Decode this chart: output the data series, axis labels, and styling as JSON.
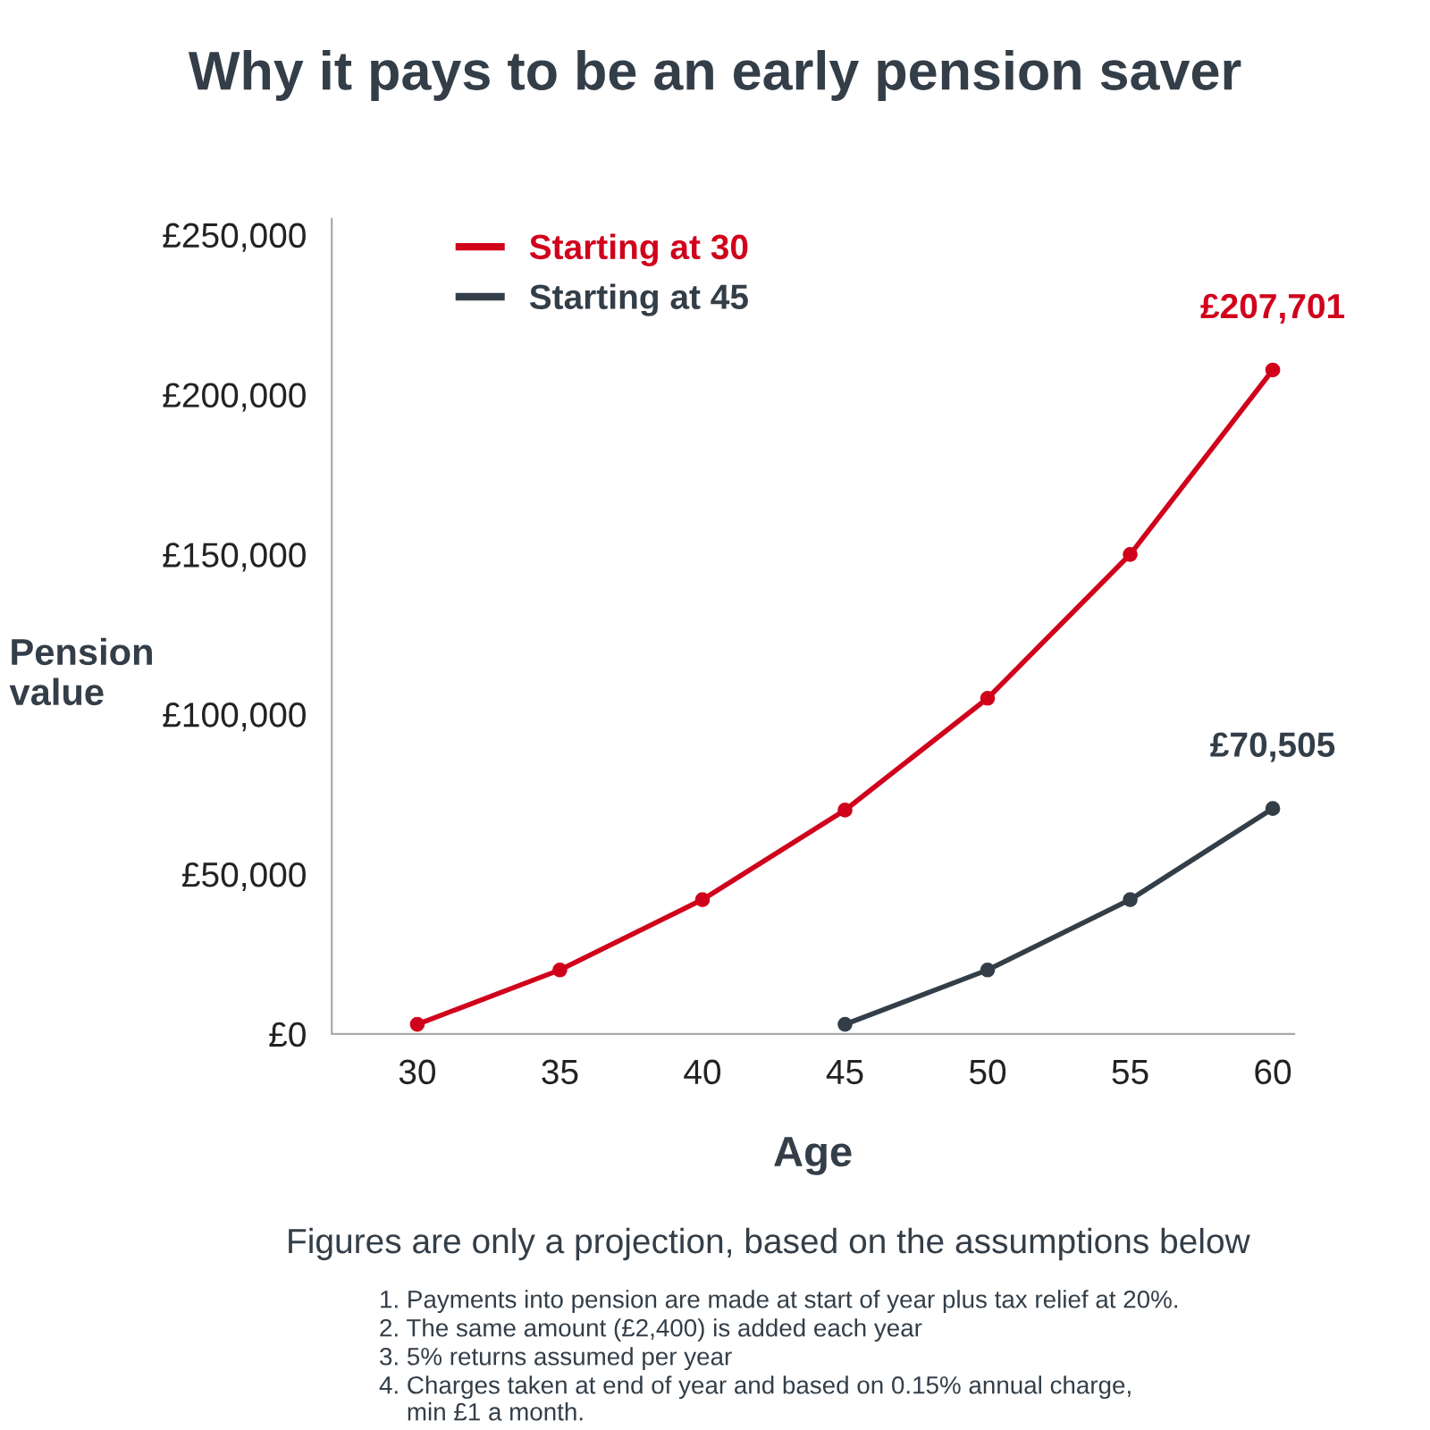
{
  "chart_data": {
    "type": "line",
    "title": "Why it pays to be an early pension saver",
    "xlabel": "Age",
    "ylabel": "Pension\nvalue",
    "x": [
      30,
      35,
      40,
      45,
      50,
      55,
      60
    ],
    "series": [
      {
        "name": "Starting at 30",
        "color": "#d0021b",
        "values": [
          3000,
          20000,
          42000,
          70000,
          105000,
          150000,
          207701
        ],
        "value_labels": [
          null,
          null,
          null,
          null,
          null,
          null,
          "£207,701"
        ]
      },
      {
        "name": "Starting at 45",
        "color": "#333e48",
        "values": [
          null,
          null,
          null,
          3000,
          20000,
          42000,
          70505
        ],
        "value_labels": [
          null,
          null,
          null,
          null,
          null,
          null,
          "£70,505"
        ]
      }
    ],
    "xlim": [
      27,
      60.75
    ],
    "xticks": [
      30,
      35,
      40,
      45,
      50,
      55,
      60
    ],
    "ylim": [
      0,
      255000
    ],
    "yticks": [
      {
        "value": 0,
        "label": "£0"
      },
      {
        "value": 50000,
        "label": "£50,000"
      },
      {
        "value": 100000,
        "label": "£100,000"
      },
      {
        "value": 150000,
        "label": "£150,000"
      },
      {
        "value": 200000,
        "label": "£200,000"
      },
      {
        "value": 250000,
        "label": "£250,000"
      }
    ],
    "grid": false,
    "legend": "top left",
    "marker": "circle",
    "line_style": "solid",
    "annotations": [
      "Figures are only a projection, based on the assumptions below",
      "1. Payments into pension are made at start of year plus tax relief at 20%.",
      "2. The same amount (£2,400) is added each year",
      "3. 5% returns assumed per year",
      "4. Charges taken at end of year and based on 0.15% annual charge,\n    min £1 a month."
    ]
  }
}
